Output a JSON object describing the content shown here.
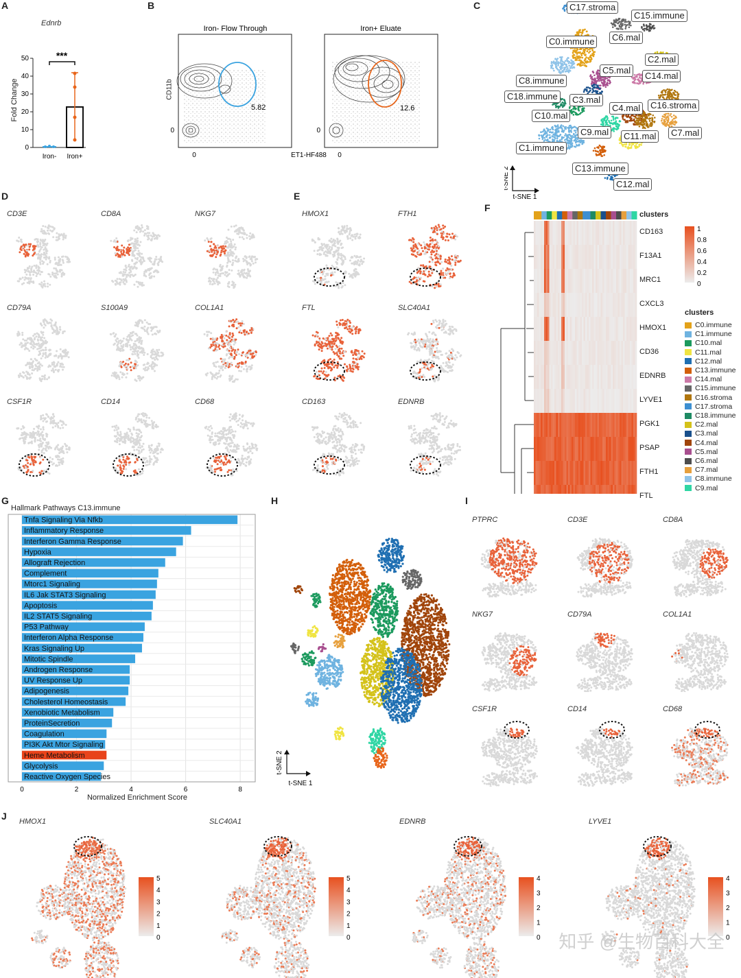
{
  "panels": {
    "A": "A",
    "B": "B",
    "C": "C",
    "D": "D",
    "E": "E",
    "F": "F",
    "G": "G",
    "H": "H",
    "I": "I",
    "J": "J"
  },
  "panelA": {
    "gene": "Ednrb",
    "ylabel": "Fold Change",
    "significance": "***",
    "yticks": [
      "0",
      "10",
      "20",
      "30",
      "40",
      "50"
    ],
    "categories": [
      "Iron-",
      "Iron+"
    ]
  },
  "panelB": {
    "plot1_title": "Iron- Flow Through",
    "plot2_title": "Iron+ Eluate",
    "ylabel": "CD11b",
    "xlabel": "ET1-HF488",
    "gate1_value": "5.82",
    "gate2_value": "12.6",
    "tick0": "0"
  },
  "panelC": {
    "clusters": [
      "C17.stroma",
      "C15.immune",
      "C6.mal",
      "C0.immune",
      "C2.mal",
      "C5.mal",
      "C14.mal",
      "C8.immune",
      "C18.immune",
      "C3.mal",
      "C16.stroma",
      "C4.mal",
      "C10.mal",
      "C9.mal",
      "C11.mal",
      "C7.mal",
      "C1.immune",
      "C13.immune",
      "C12.mal"
    ],
    "axis_y": "t-SNE 2",
    "axis_x": "t-SNE 1"
  },
  "panelD": {
    "genes": [
      "CD3E",
      "CD8A",
      "NKG7",
      "CD79A",
      "S100A9",
      "COL1A1",
      "CSF1R",
      "CD14",
      "CD68"
    ]
  },
  "panelE": {
    "genes": [
      "HMOX1",
      "FTH1",
      "FTL",
      "SLC40A1",
      "CD163",
      "EDNRB"
    ]
  },
  "panelF": {
    "header": "clusters",
    "rows": [
      "CD163",
      "F13A1",
      "MRC1",
      "CXCL3",
      "HMOX1",
      "CD36",
      "EDNRB",
      "LYVE1",
      "PGK1",
      "PSAP",
      "FTH1",
      "FTL"
    ],
    "scale": [
      "1",
      "0.8",
      "0.6",
      "0.4",
      "0.2",
      "0"
    ],
    "legend_title": "clusters",
    "legend": [
      {
        "name": "C0.immune",
        "color": "#e3a21a"
      },
      {
        "name": "C1.immune",
        "color": "#6fb3e0"
      },
      {
        "name": "C10.mal",
        "color": "#1c9a5e"
      },
      {
        "name": "C11.mal",
        "color": "#f0e442"
      },
      {
        "name": "C12.mal",
        "color": "#1f6fb2"
      },
      {
        "name": "C13.immune",
        "color": "#d35f0a"
      },
      {
        "name": "C14.mal",
        "color": "#cc79a7"
      },
      {
        "name": "C15.immune",
        "color": "#666666"
      },
      {
        "name": "C16.stroma",
        "color": "#b0760e"
      },
      {
        "name": "C17.stroma",
        "color": "#3d8fd1"
      },
      {
        "name": "C18.immune",
        "color": "#1e8a63"
      },
      {
        "name": "C2.mal",
        "color": "#d4c21a"
      },
      {
        "name": "C3.mal",
        "color": "#19508c"
      },
      {
        "name": "C4.mal",
        "color": "#a0450b"
      },
      {
        "name": "C5.mal",
        "color": "#a84f8f"
      },
      {
        "name": "C6.mal",
        "color": "#4d4d4d"
      },
      {
        "name": "C7.mal",
        "color": "#e7a03d"
      },
      {
        "name": "C8.immune",
        "color": "#8fc3e8"
      },
      {
        "name": "C9.mal",
        "color": "#2fd6a4"
      }
    ]
  },
  "chart_data": {
    "type": "bar",
    "title": "Hallmark Pathways C13.immune",
    "xlabel": "Normalized Enrichment Score",
    "ylabel": "",
    "xlim": [
      0,
      8.5
    ],
    "xticks": [
      "0",
      "2",
      "4",
      "6",
      "8"
    ],
    "categories": [
      "Tnfa Signaling Via Nfkb",
      "Inflammatory Response",
      "Interferon Gamma Response",
      "Hypoxia",
      "Allograft Rejection",
      "Complement",
      "Mtorc1 Signaling",
      "IL6 Jak STAT3 Signaling",
      "Apoptosis",
      "IL2 STAT5 Signaling",
      "P53 Pathway",
      "Interferon Alpha Response",
      "Kras Signaling Up",
      "Mitotic Spindle",
      "Androgen Response",
      "UV Response Up",
      "Adipogenesis",
      "Cholesterol Homeostasis",
      "Xenobiotic Metabolism",
      "ProteinSecretion",
      "Coagulation",
      "PI3K Akt Mtor Signaling",
      "Heme Metabolism",
      "Glycolysis",
      "Reactive Oxygen Species"
    ],
    "values": [
      7.9,
      6.2,
      5.9,
      5.65,
      5.25,
      5.0,
      4.95,
      4.9,
      4.8,
      4.75,
      4.5,
      4.45,
      4.4,
      4.15,
      3.95,
      3.95,
      3.9,
      3.8,
      3.35,
      3.3,
      3.1,
      3.05,
      3.1,
      3.0,
      2.9
    ],
    "highlight": "Heme Metabolism",
    "colors": {
      "bar": "#3aa3e0",
      "highlight": "#e8431a"
    }
  },
  "panelH": {
    "axis_y": "t-SNE 2",
    "axis_x": "t-SNE 1"
  },
  "panelI": {
    "genes": [
      "PTPRC",
      "CD3E",
      "CD8A",
      "NKG7",
      "CD79A",
      "COL1A1",
      "CSF1R",
      "CD14",
      "CD68"
    ]
  },
  "panelJ": {
    "genes": [
      "HMOX1",
      "SLC40A1",
      "EDNRB",
      "LYVE1"
    ],
    "scales": [
      [
        "5",
        "4",
        "3",
        "2",
        "1",
        "0"
      ],
      [
        "5",
        "4",
        "3",
        "2",
        "1",
        "0"
      ],
      [
        "4",
        "3",
        "2",
        "1",
        "0"
      ],
      [
        "4",
        "3",
        "2",
        "1",
        "0"
      ]
    ]
  },
  "watermark": "知乎 @生物百科大全"
}
